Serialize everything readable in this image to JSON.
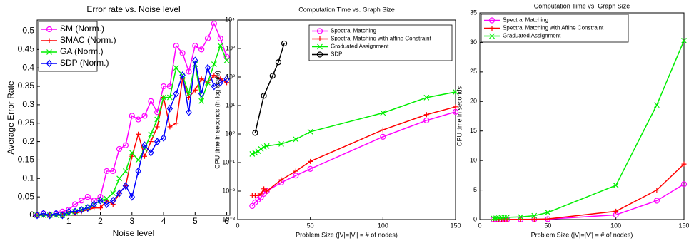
{
  "chart_data": [
    {
      "type": "line",
      "title": "Error rate vs. Noise level",
      "xlabel": "Noise level",
      "ylabel": "Average Error Rate",
      "x": [
        0,
        0.2,
        0.4,
        0.6,
        0.8,
        1,
        1.2,
        1.4,
        1.6,
        1.8,
        2,
        2.2,
        2.4,
        2.6,
        2.8,
        3,
        3.2,
        3.4,
        3.6,
        3.8,
        4,
        4.2,
        4.4,
        4.6,
        4.8,
        5,
        5.2,
        5.4,
        5.6,
        5.8,
        6
      ],
      "xlim": [
        0,
        6.1
      ],
      "xticks": [
        1,
        2,
        3,
        4,
        5,
        6
      ],
      "ylim": [
        0,
        0.53
      ],
      "yticks": [
        0,
        0.05,
        0.1,
        0.15,
        0.2,
        0.25,
        0.3,
        0.35,
        0.4,
        0.45,
        0.5
      ],
      "log_y": false,
      "grid": false,
      "legend": "top-left",
      "series": [
        {
          "name": "SM (Norm.)",
          "color": "#ff00ff",
          "marker": "circle",
          "values": [
            0,
            0.005,
            0,
            0.005,
            0.01,
            0.015,
            0.03,
            0.04,
            0.05,
            0.04,
            0.05,
            0.12,
            0.12,
            0.18,
            0.19,
            0.27,
            0.26,
            0.27,
            0.31,
            0.28,
            0.35,
            0.35,
            0.46,
            0.44,
            0.39,
            0.46,
            0.45,
            0.48,
            0.52,
            0.48,
            0.43
          ]
        },
        {
          "name": "SMAC (Norm.)",
          "color": "#ff0000",
          "marker": "plus",
          "values": [
            0,
            0,
            0,
            0,
            0,
            0.01,
            0.005,
            0.01,
            0.015,
            0.02,
            0.02,
            0.04,
            0.03,
            0.06,
            0.08,
            0.16,
            0.22,
            0.16,
            0.2,
            0.24,
            0.32,
            0.24,
            0.25,
            0.37,
            0.32,
            0.34,
            0.37,
            0.36,
            0.38,
            0.37,
            0.36
          ]
        },
        {
          "name": "GA (Norm.)",
          "color": "#00ee00",
          "marker": "x",
          "values": [
            0,
            0,
            0,
            0,
            0,
            0.005,
            0.01,
            0.015,
            0.02,
            0.03,
            0.04,
            0.045,
            0.06,
            0.1,
            0.12,
            0.17,
            0.15,
            0.18,
            0.22,
            0.26,
            0.32,
            0.32,
            0.4,
            0.38,
            0.33,
            0.41,
            0.31,
            0.36,
            0.41,
            0.46,
            0.42
          ]
        },
        {
          "name": "SDP (Norm.)",
          "color": "#0000ff",
          "marker": "diamond",
          "values": [
            0,
            0.005,
            0,
            0.005,
            0,
            0.01,
            0.01,
            0.015,
            0.02,
            0.03,
            0.04,
            0.03,
            0.04,
            0.06,
            0.08,
            0.05,
            0.12,
            0.19,
            0.17,
            0.2,
            0.21,
            0.29,
            0.33,
            0.38,
            0.28,
            0.42,
            0.33,
            0.4,
            0.35,
            0.36,
            0.37
          ]
        }
      ]
    },
    {
      "type": "line",
      "title": "Computation Time vs. Graph Size",
      "xlabel": "Problem Size (|V|=|V'| = # of nodes)",
      "ylabel": "CPU time in seconds (in log scale)",
      "x": [
        10,
        12,
        14,
        16,
        18,
        20,
        30,
        40,
        50,
        100,
        130,
        150
      ],
      "xlim": [
        0,
        150
      ],
      "xticks": [
        0,
        50,
        100,
        150
      ],
      "ylim": [
        0.001,
        10000
      ],
      "yticks": [
        {
          "value": 0.001,
          "label": "10⁻³"
        },
        {
          "value": 0.01,
          "label": "10⁻²"
        },
        {
          "value": 0.1,
          "label": "10⁻¹"
        },
        {
          "value": 1,
          "label": "10⁰"
        },
        {
          "value": 10,
          "label": "10¹"
        },
        {
          "value": 100,
          "label": "10²"
        },
        {
          "value": 1000,
          "label": "10³"
        },
        {
          "value": 10000,
          "label": "10⁴"
        }
      ],
      "log_y": true,
      "grid": false,
      "legend": "top-left",
      "series": [
        {
          "name": "Spectral Matching",
          "color": "#ff00ff",
          "marker": "circle",
          "values": [
            0.003,
            0.004,
            0.005,
            0.006,
            0.008,
            0.01,
            0.02,
            0.035,
            0.06,
            0.8,
            3,
            6
          ]
        },
        {
          "name": "Spectral Matching with affine Constraint",
          "color": "#ff0000",
          "marker": "plus",
          "values": [
            0.007,
            0.007,
            0.007,
            0.008,
            0.012,
            0.01,
            0.025,
            0.05,
            0.11,
            1.4,
            4.8,
            9
          ]
        },
        {
          "name": "Graduated Assignment",
          "color": "#00ee00",
          "marker": "x",
          "values": [
            0.2,
            0.22,
            0.25,
            0.3,
            0.35,
            0.38,
            0.45,
            0.65,
            1.2,
            5.5,
            19,
            30
          ]
        },
        {
          "name": "SDP",
          "color": "#000000",
          "marker": "circle",
          "x": [
            12,
            18,
            24,
            28,
            32
          ],
          "values": [
            1.1,
            22,
            110,
            330,
            1500
          ]
        }
      ]
    },
    {
      "type": "line",
      "title": "Computation Time vs. Graph Size",
      "xlabel": "Problem Size (|V|=|V'| = # of nodes)",
      "ylabel": "CPU time in seconds",
      "x": [
        10,
        12,
        14,
        16,
        18,
        20,
        30,
        40,
        50,
        100,
        130,
        150
      ],
      "xlim": [
        0,
        150
      ],
      "xticks": [
        0,
        50,
        100,
        150
      ],
      "ylim": [
        0,
        35
      ],
      "yticks": [
        0,
        5,
        10,
        15,
        20,
        25,
        30,
        35
      ],
      "log_y": false,
      "grid": false,
      "legend": "top-left",
      "series": [
        {
          "name": "Spectral Matching",
          "color": "#ff00ff",
          "marker": "circle",
          "values": [
            0.003,
            0.004,
            0.005,
            0.006,
            0.008,
            0.01,
            0.02,
            0.035,
            0.06,
            0.8,
            3.2,
            6
          ]
        },
        {
          "name": "Spectral Matching with Affine Constraint",
          "color": "#ff0000",
          "marker": "plus",
          "values": [
            0.007,
            0.007,
            0.007,
            0.008,
            0.012,
            0.01,
            0.025,
            0.05,
            0.11,
            1.4,
            5,
            9.4
          ]
        },
        {
          "name": "Graduated Assignment",
          "color": "#00ee00",
          "marker": "x",
          "values": [
            0.2,
            0.22,
            0.25,
            0.3,
            0.35,
            0.38,
            0.45,
            0.65,
            1.2,
            5.8,
            19.4,
            30.3
          ]
        }
      ]
    }
  ]
}
